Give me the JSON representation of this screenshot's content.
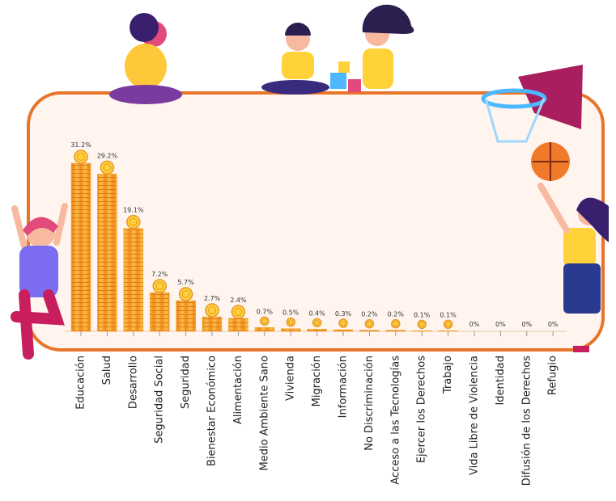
{
  "chart_data": {
    "type": "bar",
    "categories": [
      "Educación",
      "Salud",
      "Desarrollo",
      "Seguridad Social",
      "Seguridad",
      "Bienestar Económico",
      "Alimentación",
      "Medio Ambiente Sano",
      "Vivienda",
      "Migración",
      "Información",
      "No Discriminación",
      "Acceso a las Tecnologías",
      "Ejercer los Derechos",
      "Trabajo",
      "Vida Libre de Violencia",
      "Identidad",
      "Difusión de los Derechos",
      "Refugio"
    ],
    "values": [
      31.2,
      29.2,
      19.1,
      7.2,
      5.7,
      2.7,
      2.4,
      0.7,
      0.5,
      0.4,
      0.3,
      0.2,
      0.2,
      0.1,
      0.1,
      0,
      0,
      0,
      0
    ],
    "value_labels": [
      "31.2%",
      "29.2%",
      "19.1%",
      "7.2%",
      "5.7%",
      "2.7%",
      "2.4%",
      "0.7%",
      "0.5%",
      "0.4%",
      "0.3%",
      "0.2%",
      "0.2%",
      "0.1%",
      "0.1%",
      "0%",
      "0%",
      "0%",
      "0%"
    ],
    "color": "#f4a52c"
  }
}
